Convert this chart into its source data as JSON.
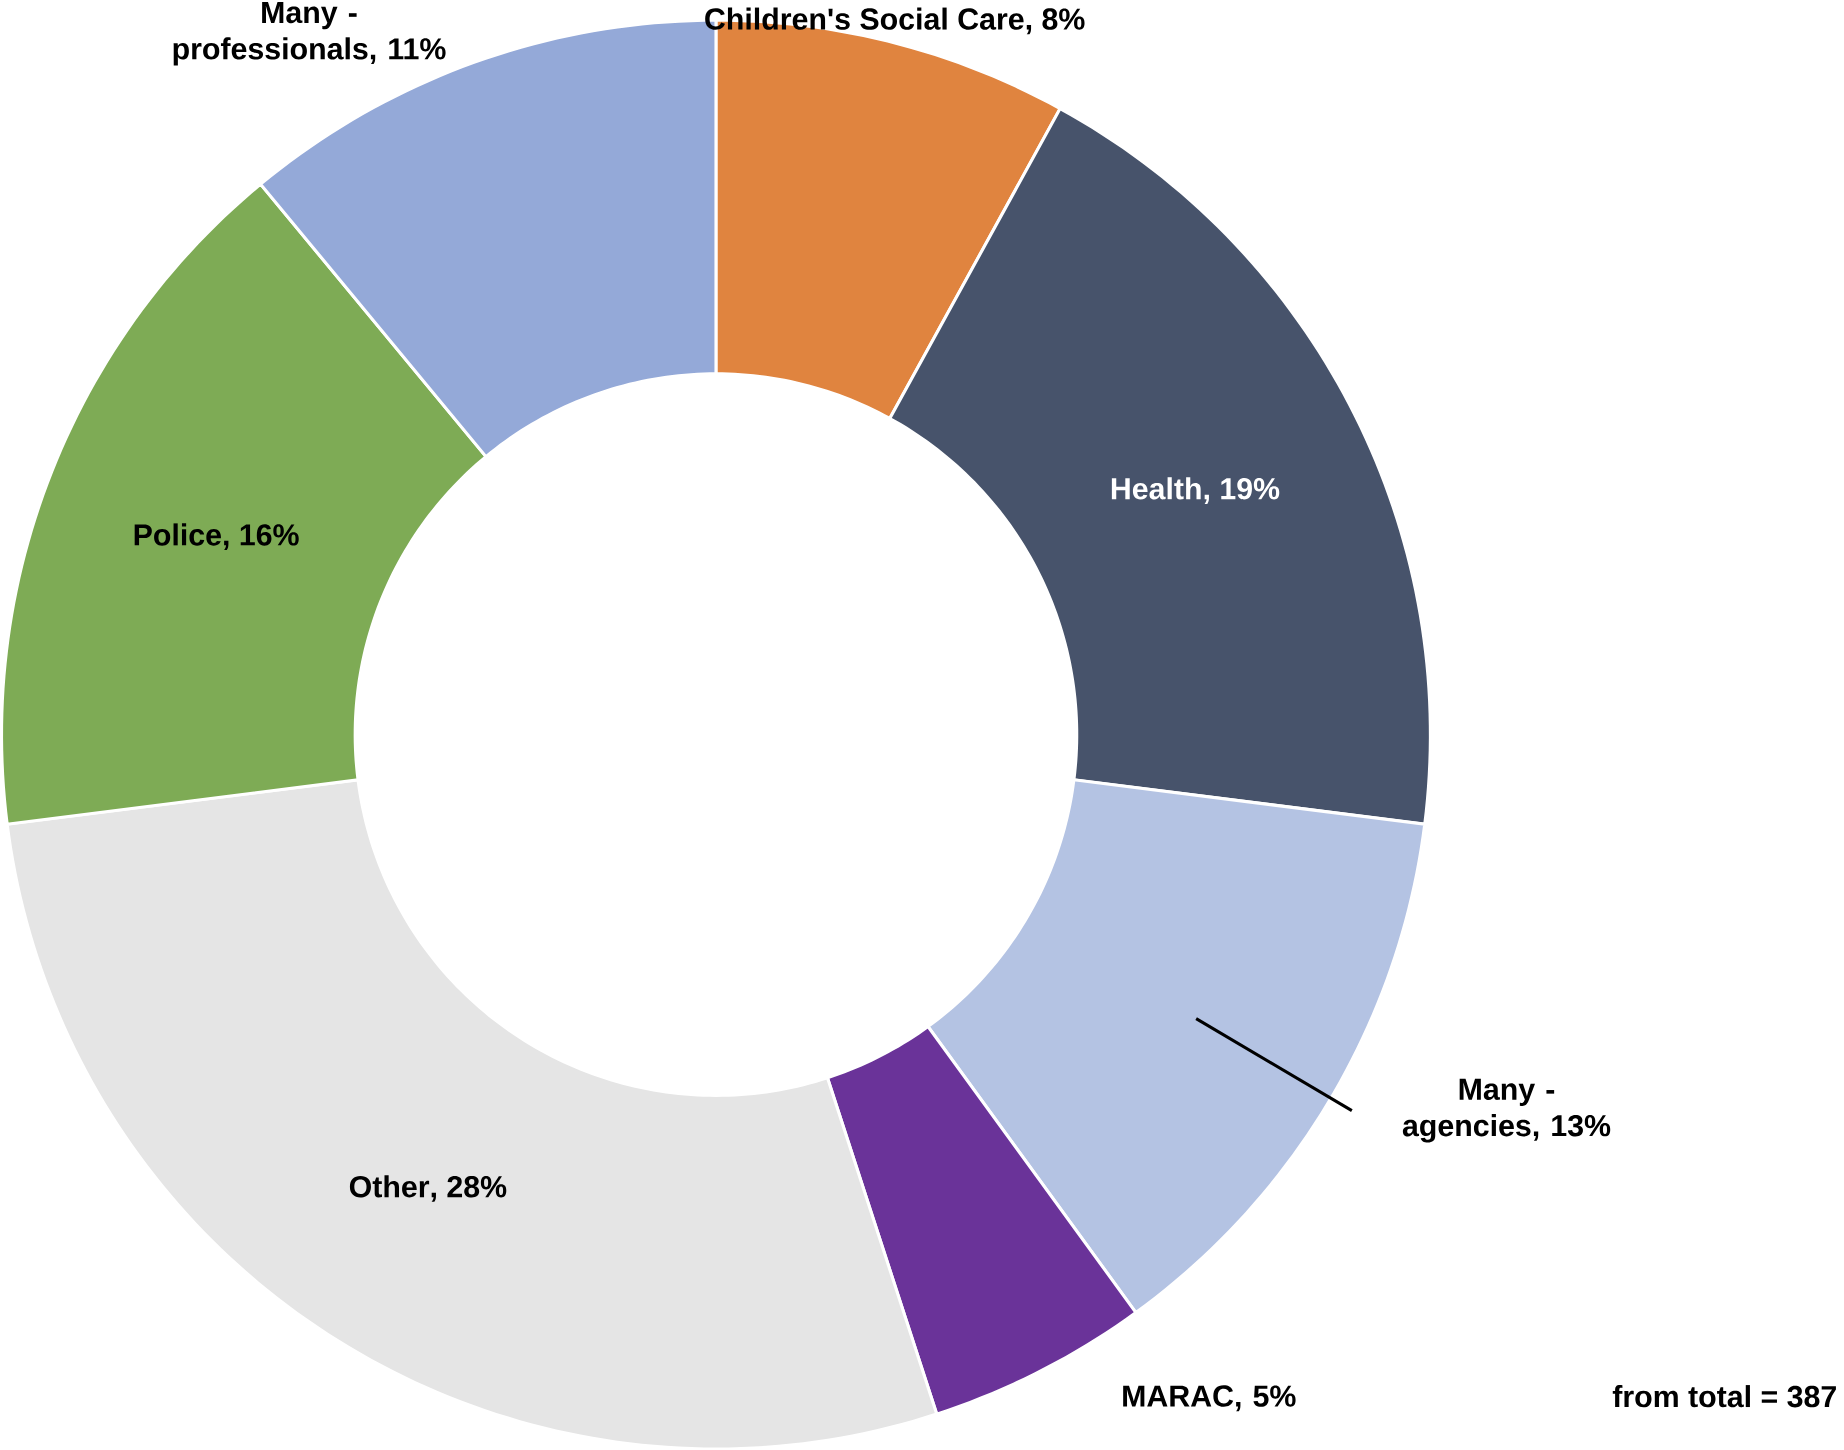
{
  "chart_data": {
    "type": "donut",
    "categories": [
      "Children's Social Care",
      "Health",
      "Many - agencies",
      "MARAC",
      "Other",
      "Police",
      "Many - professionals"
    ],
    "values": [
      8,
      19,
      13,
      5,
      28,
      16,
      11
    ],
    "value_labels": [
      ", 8%",
      ", 19%",
      ", 13%",
      ", 5%",
      ", 28%",
      ", 16%",
      ", 11%"
    ],
    "colors": [
      "#e0843f",
      "#47536b",
      "#b4c3e3",
      "#6a3399",
      "#e5e5e5",
      "#7eab55",
      "#94a9d8"
    ],
    "annotations": [
      "from total = 387"
    ]
  }
}
